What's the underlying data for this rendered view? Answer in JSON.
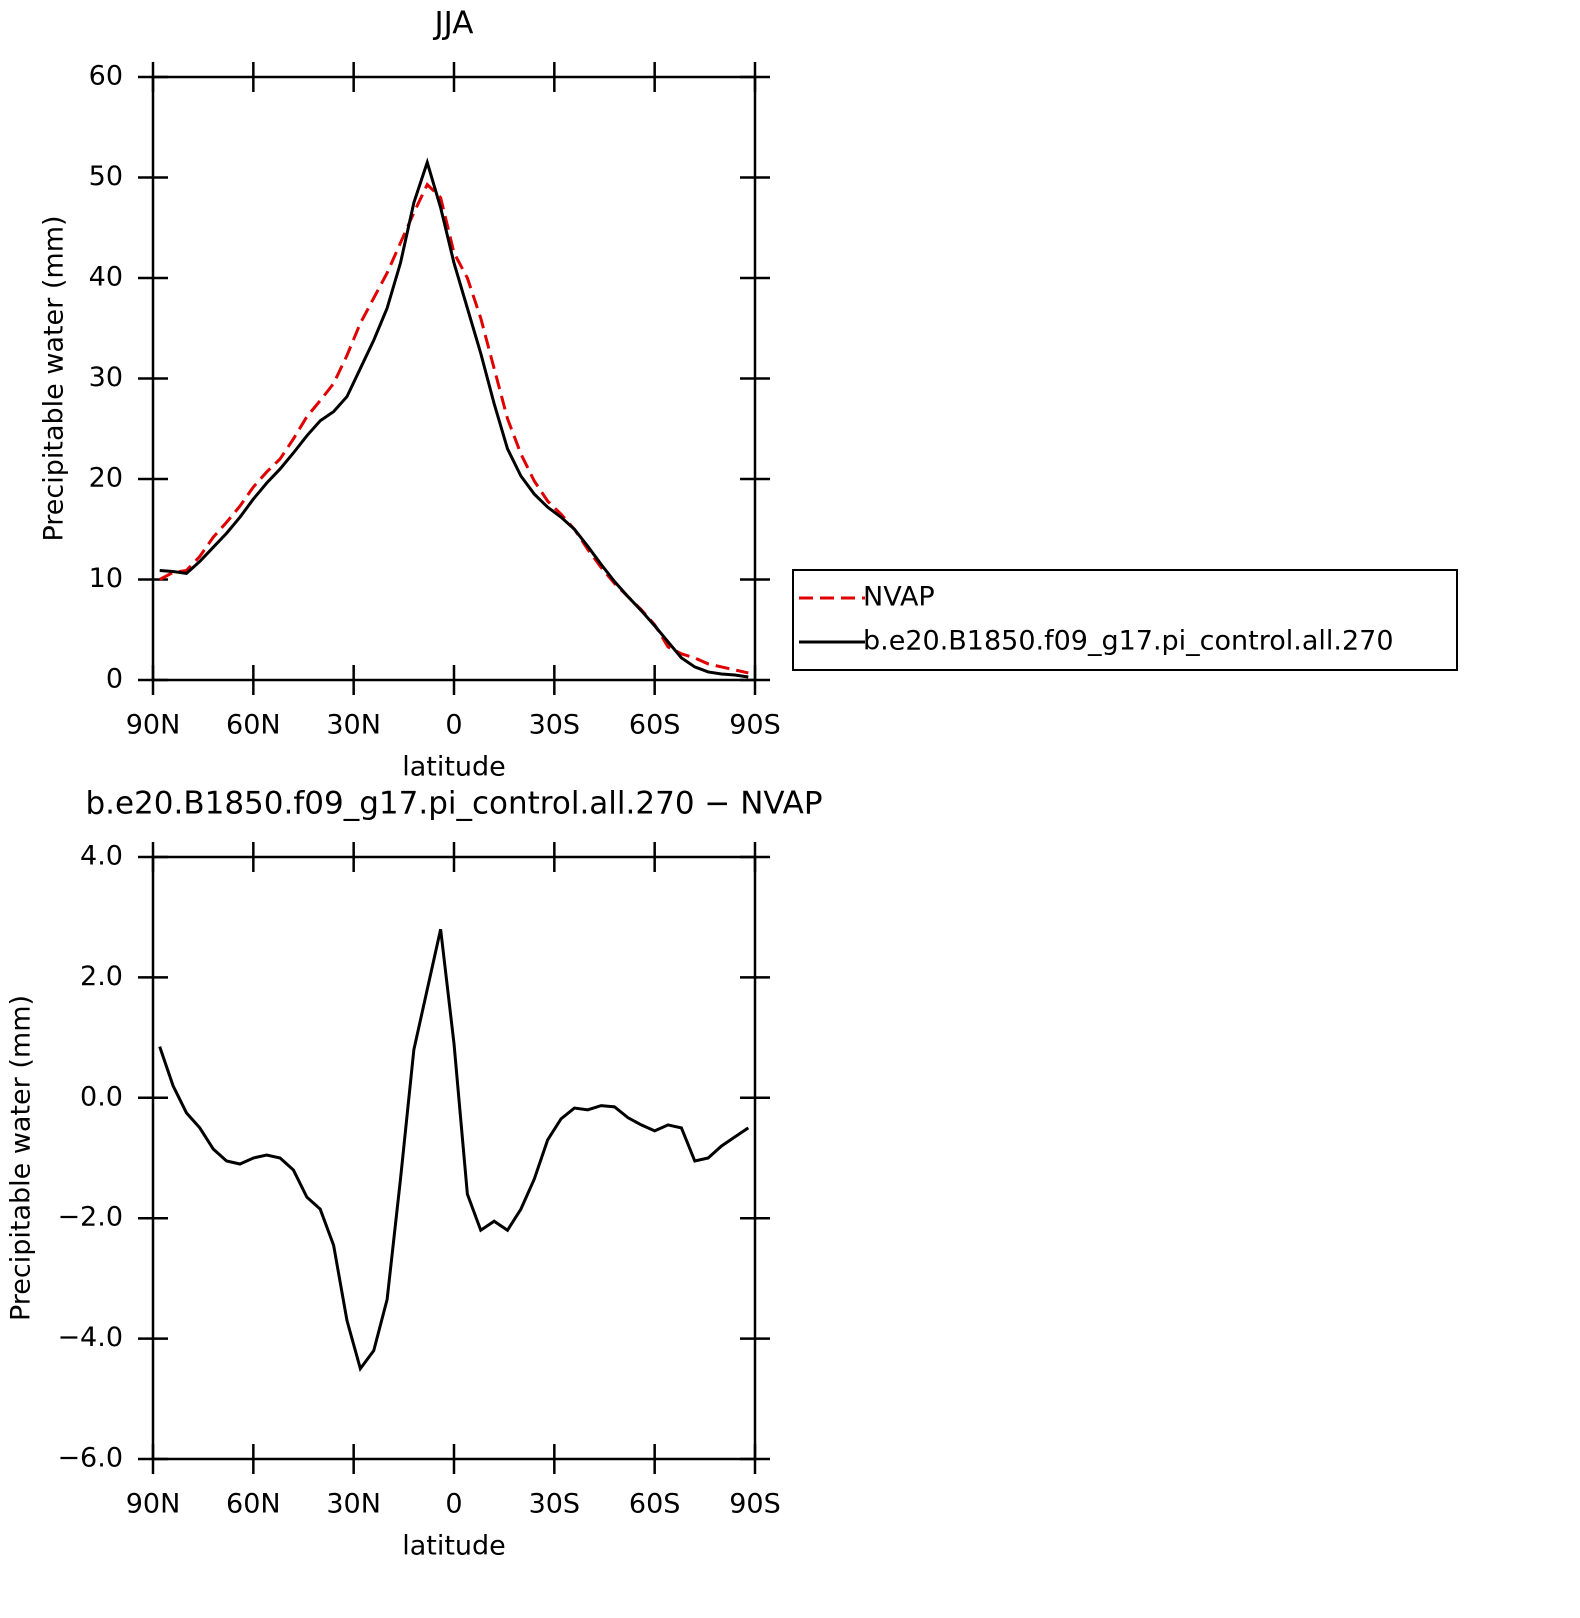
{
  "chart_data": [
    {
      "type": "line",
      "title": "JJA",
      "xlabel": "latitude",
      "ylabel": "Precipitable water (mm)",
      "x": [
        88,
        84,
        80,
        76,
        72,
        68,
        64,
        60,
        56,
        52,
        48,
        44,
        40,
        36,
        32,
        28,
        24,
        20,
        16,
        12,
        8,
        4,
        0,
        -4,
        -8,
        -12,
        -16,
        -20,
        -24,
        -28,
        -32,
        -36,
        -40,
        -44,
        -48,
        -52,
        -56,
        -60,
        -64,
        -68,
        -72,
        -76,
        -80,
        -84,
        -88
      ],
      "xlim": [
        90,
        -90
      ],
      "xticks": [
        {
          "value": 90,
          "label": "90N"
        },
        {
          "value": 60,
          "label": "60N"
        },
        {
          "value": 30,
          "label": "30N"
        },
        0,
        {
          "value": -30,
          "label": "30S"
        },
        {
          "value": -60,
          "label": "60S"
        },
        {
          "value": -90,
          "label": "90S"
        }
      ],
      "ylim": [
        0,
        60
      ],
      "yticks": [
        0,
        10,
        20,
        30,
        40,
        50,
        60
      ],
      "legend": "right",
      "series": [
        {
          "name": "NVAP",
          "color": "#e00000",
          "line_style": "dashed",
          "values": [
            10.0,
            10.7,
            10.9,
            12.3,
            14.2,
            15.7,
            17.3,
            19.2,
            20.7,
            22.0,
            24.0,
            26.2,
            27.8,
            29.5,
            32.3,
            35.5,
            38.0,
            40.5,
            43.5,
            46.5,
            49.3,
            48.0,
            42.5,
            40.0,
            36.0,
            31.0,
            26.0,
            22.5,
            19.8,
            17.8,
            16.5,
            15.0,
            13.0,
            11.2,
            9.6,
            8.3,
            7.0,
            5.5,
            3.3,
            2.6,
            2.2,
            1.6,
            1.3,
            1.0,
            0.7
          ]
        },
        {
          "name": "b.e20.B1850.f09_g17.pi_control.all.270",
          "color": "#000000",
          "line_style": "solid",
          "values": [
            10.9,
            10.8,
            10.6,
            11.8,
            13.2,
            14.6,
            16.2,
            18.0,
            19.6,
            21.0,
            22.6,
            24.3,
            25.8,
            26.7,
            28.2,
            31.0,
            33.8,
            37.0,
            41.5,
            47.5,
            51.5,
            47.0,
            41.5,
            37.0,
            32.5,
            27.5,
            23.0,
            20.3,
            18.5,
            17.2,
            16.2,
            15.0,
            13.3,
            11.5,
            9.8,
            8.3,
            6.9,
            5.4,
            3.8,
            2.2,
            1.3,
            0.8,
            0.6,
            0.5,
            0.3
          ]
        }
      ]
    },
    {
      "type": "line",
      "title": "b.e20.B1850.f09_g17.pi_control.all.270 − NVAP",
      "xlabel": "latitude",
      "ylabel": "Precipitable water (mm)",
      "x": [
        88,
        84,
        80,
        76,
        72,
        68,
        64,
        60,
        56,
        52,
        48,
        44,
        40,
        36,
        32,
        28,
        24,
        20,
        16,
        12,
        8,
        4,
        0,
        -4,
        -8,
        -12,
        -16,
        -20,
        -24,
        -28,
        -32,
        -36,
        -40,
        -44,
        -48,
        -52,
        -56,
        -60,
        -64,
        -68,
        -72,
        -76,
        -80,
        -84,
        -88
      ],
      "xlim": [
        90,
        -90
      ],
      "xticks": [
        {
          "value": 90,
          "label": "90N"
        },
        {
          "value": 60,
          "label": "60N"
        },
        {
          "value": 30,
          "label": "30N"
        },
        0,
        {
          "value": -30,
          "label": "30S"
        },
        {
          "value": -60,
          "label": "60S"
        },
        {
          "value": -90,
          "label": "90S"
        }
      ],
      "ylim": [
        -6,
        4
      ],
      "yticks": [
        {
          "value": -6,
          "label": "−6.0"
        },
        {
          "value": -4,
          "label": "−4.0"
        },
        {
          "value": -2,
          "label": "−2.0"
        },
        {
          "value": 0,
          "label": "0.0"
        },
        {
          "value": 2,
          "label": "2.0"
        },
        {
          "value": 4,
          "label": "4.0"
        }
      ],
      "series": [
        {
          "color": "#000000",
          "line_style": "solid",
          "values": [
            0.85,
            0.2,
            -0.25,
            -0.5,
            -0.85,
            -1.05,
            -1.1,
            -1.0,
            -0.95,
            -1.0,
            -1.2,
            -1.65,
            -1.85,
            -2.45,
            -3.7,
            -4.5,
            -4.2,
            -3.35,
            -1.35,
            0.8,
            1.8,
            2.8,
            0.9,
            -1.6,
            -2.2,
            -2.05,
            -2.2,
            -1.85,
            -1.35,
            -0.7,
            -0.35,
            -0.17,
            -0.2,
            -0.13,
            -0.15,
            -0.33,
            -0.45,
            -0.55,
            -0.45,
            -0.5,
            -1.05,
            -1.0,
            -0.8,
            -0.65,
            -0.5
          ]
        }
      ]
    }
  ]
}
